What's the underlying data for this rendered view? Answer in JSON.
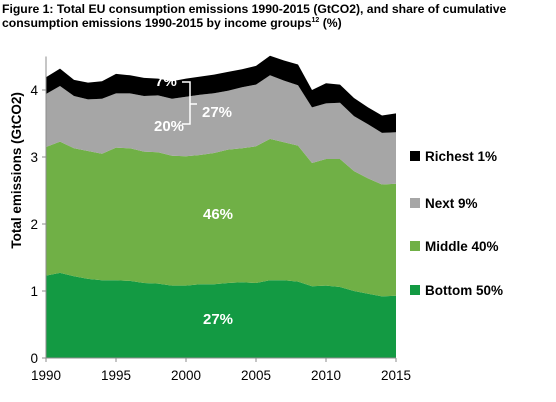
{
  "figure": {
    "title_line1": "Figure 1: Total EU consumption emissions 1990-2015 (GtCO2), and share of cumulative",
    "title_line2_prefix": "consumption emissions 1990-2015 by income groups",
    "title_sup": "12",
    "title_line2_suffix": " (%)"
  },
  "chart_data": {
    "type": "area",
    "stacked": true,
    "ylabel": "Total emissions (GtCO2)",
    "xlabel": "",
    "xlim": [
      1990,
      2015
    ],
    "ylim": [
      0,
      4.5
    ],
    "x_ticks": [
      "1990",
      "1995",
      "2000",
      "2005",
      "2010",
      "2015"
    ],
    "y_ticks": [
      "0",
      "1",
      "2",
      "3",
      "4"
    ],
    "x": [
      1990,
      1991,
      1992,
      1993,
      1994,
      1995,
      1996,
      1997,
      1998,
      1999,
      2000,
      2001,
      2002,
      2003,
      2004,
      2005,
      2006,
      2007,
      2008,
      2009,
      2010,
      2011,
      2012,
      2013,
      2014,
      2015
    ],
    "series": [
      {
        "name": "Bottom 50%",
        "color": "#139a43",
        "share_label": "27%",
        "values": [
          1.23,
          1.27,
          1.22,
          1.18,
          1.16,
          1.16,
          1.15,
          1.12,
          1.11,
          1.08,
          1.08,
          1.1,
          1.1,
          1.12,
          1.13,
          1.12,
          1.16,
          1.16,
          1.14,
          1.07,
          1.08,
          1.06,
          1.0,
          0.96,
          0.92,
          0.93
        ]
      },
      {
        "name": "Middle 40%",
        "color": "#70b046",
        "share_label": "46%",
        "values": [
          1.92,
          1.96,
          1.91,
          1.91,
          1.89,
          1.98,
          1.98,
          1.96,
          1.96,
          1.94,
          1.93,
          1.93,
          1.96,
          1.99,
          2.0,
          2.04,
          2.11,
          2.06,
          2.03,
          1.84,
          1.89,
          1.91,
          1.79,
          1.72,
          1.67,
          1.67
        ]
      },
      {
        "name": "Next 9%",
        "color": "#a6a6a6",
        "share_label": "20%",
        "values": [
          0.79,
          0.83,
          0.78,
          0.77,
          0.82,
          0.81,
          0.82,
          0.83,
          0.85,
          0.85,
          0.89,
          0.9,
          0.89,
          0.88,
          0.91,
          0.92,
          0.95,
          0.92,
          0.9,
          0.83,
          0.83,
          0.84,
          0.82,
          0.81,
          0.77,
          0.77
        ]
      },
      {
        "name": "Richest 1%",
        "color": "#000000",
        "share_label": "7%",
        "values": [
          0.25,
          0.26,
          0.24,
          0.25,
          0.26,
          0.29,
          0.27,
          0.27,
          0.25,
          0.26,
          0.27,
          0.27,
          0.28,
          0.28,
          0.27,
          0.28,
          0.29,
          0.3,
          0.31,
          0.26,
          0.3,
          0.27,
          0.27,
          0.25,
          0.26,
          0.28
        ]
      }
    ],
    "share_of_top10_label": "27%",
    "grid": false,
    "legend_position": "right"
  }
}
